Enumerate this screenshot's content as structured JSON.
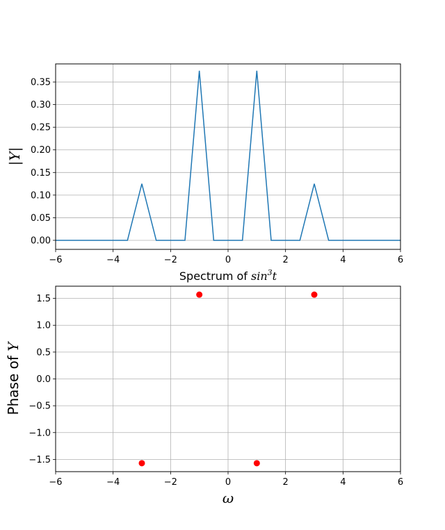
{
  "chart_data": [
    {
      "type": "line",
      "xlabel_prefix": "Spectrum of ",
      "xlabel_math": "sin",
      "xlabel_sup": "3",
      "xlabel_var": "t",
      "ylabel": "|Y|",
      "xlim": [
        -6,
        6
      ],
      "ylim": [
        -0.02,
        0.39
      ],
      "xticks": [
        -6,
        -4,
        -2,
        0,
        2,
        4,
        6
      ],
      "xtick_labels": [
        "−6",
        "−4",
        "−2",
        "0",
        "2",
        "4",
        "6"
      ],
      "yticks": [
        0.0,
        0.05,
        0.1,
        0.15,
        0.2,
        0.25,
        0.3,
        0.35
      ],
      "ytick_labels": [
        "0.00",
        "0.05",
        "0.10",
        "0.15",
        "0.20",
        "0.25",
        "0.30",
        "0.35"
      ],
      "grid": true,
      "color": "#1f77b4",
      "series": [
        {
          "x": [
            -6,
            -3.5,
            -3,
            -2.5,
            -1.5,
            -1,
            -0.5,
            0.5,
            1,
            1.5,
            2.5,
            3,
            3.5,
            6
          ],
          "y": [
            0,
            0,
            0.125,
            0,
            0,
            0.375,
            0,
            0,
            0.375,
            0,
            0,
            0.125,
            0,
            0
          ]
        }
      ]
    },
    {
      "type": "scatter",
      "xlabel": "ω",
      "ylabel": "Phase of Y",
      "ylabel_prefix": "Phase of ",
      "ylabel_var": "Y",
      "xlim": [
        -6,
        6
      ],
      "ylim": [
        -1.728,
        1.728
      ],
      "xticks": [
        -6,
        -4,
        -2,
        0,
        2,
        4,
        6
      ],
      "xtick_labels": [
        "−6",
        "−4",
        "−2",
        "0",
        "2",
        "4",
        "6"
      ],
      "yticks": [
        -1.5,
        -1.0,
        -0.5,
        0.0,
        0.5,
        1.0,
        1.5
      ],
      "ytick_labels": [
        "−1.5",
        "−1.0",
        "−0.5",
        "0.0",
        "0.5",
        "1.0",
        "1.5"
      ],
      "grid": true,
      "color": "#ff0000",
      "series": [
        {
          "x": [
            -3,
            -1,
            1,
            3
          ],
          "y": [
            -1.5708,
            1.5708,
            -1.5708,
            1.5708
          ]
        }
      ]
    }
  ]
}
